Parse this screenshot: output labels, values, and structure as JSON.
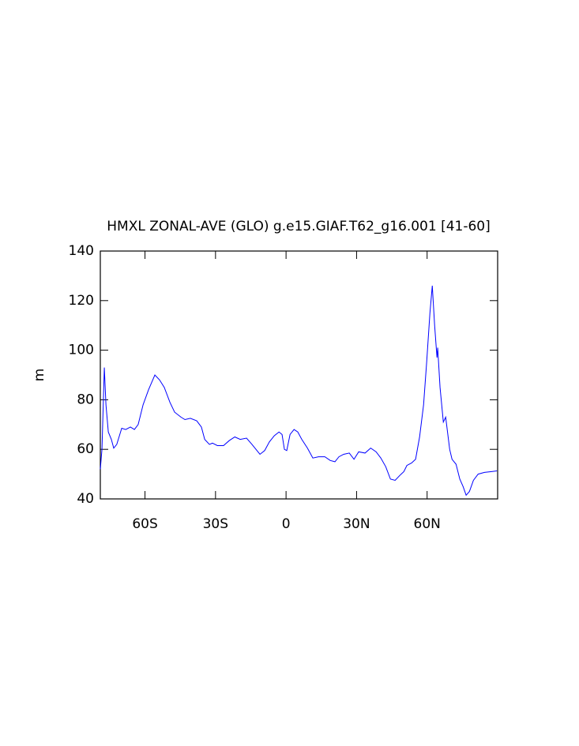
{
  "chart_data": {
    "type": "line",
    "title": "HMXL ZONAL-AVE (GLO) g.e15.GIAF.T62_g16.001 [41-60]",
    "y_label": "m",
    "x": [
      -79,
      -78.3,
      -77.3,
      -76.6,
      -75.6,
      -74.3,
      -73.3,
      -72,
      -69.9,
      -68.2,
      -66.2,
      -64.5,
      -62.9,
      -60.8,
      -58.5,
      -55.8,
      -53.8,
      -51.8,
      -49.4,
      -47.4,
      -44.7,
      -43,
      -40.7,
      -38,
      -36,
      -34.6,
      -32.6,
      -31.3,
      -29.2,
      -26.6,
      -24.2,
      -21.8,
      -19.5,
      -16.8,
      -14.5,
      -12.8,
      -11.1,
      -9.1,
      -7.1,
      -5,
      -3,
      -1.7,
      -0.7,
      0.3,
      1.7,
      3.4,
      5,
      6.7,
      9.1,
      11.4,
      13.8,
      16.5,
      18.8,
      20.8,
      22.5,
      24.5,
      26.9,
      28.9,
      30.9,
      33.6,
      36,
      38.3,
      40.3,
      42.4,
      44.4,
      46.4,
      48.4,
      50.1,
      51.4,
      53.4,
      55.1,
      56.8,
      58.5,
      59.8,
      61.2,
      62.2,
      63.2,
      64.2,
      64.5,
      65.5,
      66.9,
      67.9,
      69.6,
      70.6,
      72.3,
      73.9,
      75.3,
      76.6,
      78,
      79.7,
      81.7,
      84.4,
      87.1,
      89.7
    ],
    "series": [
      {
        "color": "#0000ff",
        "values": [
          52,
          60,
          93,
          78,
          67,
          64,
          60.5,
          62,
          68.5,
          68,
          69,
          68,
          70,
          78,
          84,
          90,
          88,
          85,
          79,
          75,
          73,
          72,
          72.5,
          71.5,
          69,
          64,
          62,
          62.5,
          61.5,
          61.5,
          63.5,
          65,
          64,
          64.5,
          62,
          60,
          58,
          59.5,
          63,
          65.5,
          67,
          66,
          60,
          59.5,
          66,
          68,
          67,
          64,
          60.5,
          56.5,
          57,
          57,
          55.5,
          55,
          57,
          58,
          58.5,
          56,
          59,
          58.5,
          60.5,
          59,
          56.5,
          53,
          48,
          47.5,
          49.5,
          51,
          53.5,
          54.5,
          56,
          65,
          78,
          95,
          115,
          126,
          110,
          97,
          101,
          85,
          71,
          73,
          60,
          56,
          54,
          48,
          45,
          41.5,
          43,
          47.5,
          50,
          50.7,
          51,
          51.3
        ]
      }
    ],
    "xlim": [
      -79,
      90
    ],
    "xticks": [
      {
        "value": -60,
        "label": "60S"
      },
      {
        "value": -30,
        "label": "30S"
      },
      0,
      {
        "value": 30,
        "label": "30N"
      },
      {
        "value": 60,
        "label": "60N"
      }
    ],
    "ylim": [
      40,
      140
    ],
    "yticks": [
      40,
      60,
      80,
      100,
      120,
      140
    ]
  }
}
